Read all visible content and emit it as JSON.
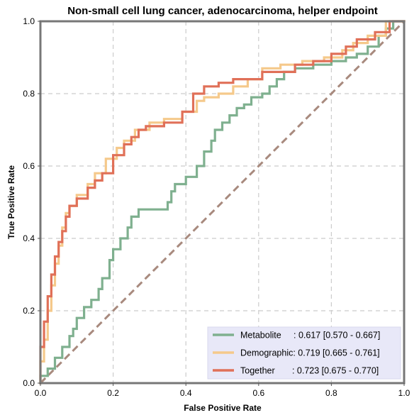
{
  "chart_data": {
    "type": "line",
    "title": "Non-small cell lung cancer, adenocarcinoma, helper endpoint",
    "xlabel": "False Positive Rate",
    "ylabel": "True Positive Rate",
    "xlim": [
      0,
      1
    ],
    "ylim": [
      0,
      1
    ],
    "x_ticks": [
      "0.0",
      "0.2",
      "0.4",
      "0.6",
      "0.8",
      "1.0"
    ],
    "y_ticks": [
      "0.0",
      "0.2",
      "0.4",
      "0.6",
      "0.8",
      "1.0"
    ],
    "grid": true,
    "legend_position": "lower-right",
    "series": [
      {
        "name": "Metabolite",
        "legend_label": "Metabolite     : 0.617 [0.570 - 0.667]",
        "color": "#7fb08f",
        "points": [
          [
            0,
            0
          ],
          [
            0.02,
            0.02
          ],
          [
            0.04,
            0.04
          ],
          [
            0.06,
            0.07
          ],
          [
            0.08,
            0.1
          ],
          [
            0.09,
            0.13
          ],
          [
            0.1,
            0.15
          ],
          [
            0.12,
            0.18
          ],
          [
            0.14,
            0.21
          ],
          [
            0.16,
            0.23
          ],
          [
            0.17,
            0.26
          ],
          [
            0.19,
            0.29
          ],
          [
            0.2,
            0.34
          ],
          [
            0.22,
            0.37
          ],
          [
            0.24,
            0.4
          ],
          [
            0.25,
            0.43
          ],
          [
            0.27,
            0.46
          ],
          [
            0.29,
            0.48
          ],
          [
            0.35,
            0.48
          ],
          [
            0.36,
            0.5
          ],
          [
            0.37,
            0.53
          ],
          [
            0.4,
            0.55
          ],
          [
            0.43,
            0.57
          ],
          [
            0.45,
            0.6
          ],
          [
            0.47,
            0.64
          ],
          [
            0.48,
            0.67
          ],
          [
            0.5,
            0.7
          ],
          [
            0.52,
            0.72
          ],
          [
            0.54,
            0.74
          ],
          [
            0.56,
            0.76
          ],
          [
            0.58,
            0.77
          ],
          [
            0.61,
            0.79
          ],
          [
            0.63,
            0.8
          ],
          [
            0.65,
            0.82
          ],
          [
            0.67,
            0.84
          ],
          [
            0.7,
            0.86
          ],
          [
            0.75,
            0.87
          ],
          [
            0.8,
            0.88
          ],
          [
            0.84,
            0.89
          ],
          [
            0.87,
            0.9
          ],
          [
            0.9,
            0.91
          ],
          [
            0.93,
            0.93
          ],
          [
            0.95,
            0.96
          ],
          [
            0.97,
            0.98
          ],
          [
            1,
            1
          ]
        ]
      },
      {
        "name": "Demographic",
        "legend_label": "Demographic: 0.719 [0.665 - 0.761]",
        "color": "#f5c98b",
        "points": [
          [
            0,
            0
          ],
          [
            0.01,
            0.06
          ],
          [
            0.02,
            0.12
          ],
          [
            0.03,
            0.2
          ],
          [
            0.04,
            0.27
          ],
          [
            0.05,
            0.33
          ],
          [
            0.06,
            0.38
          ],
          [
            0.07,
            0.43
          ],
          [
            0.08,
            0.47
          ],
          [
            0.1,
            0.49
          ],
          [
            0.13,
            0.52
          ],
          [
            0.15,
            0.55
          ],
          [
            0.18,
            0.58
          ],
          [
            0.21,
            0.62
          ],
          [
            0.23,
            0.65
          ],
          [
            0.26,
            0.67
          ],
          [
            0.3,
            0.7
          ],
          [
            0.34,
            0.72
          ],
          [
            0.39,
            0.73
          ],
          [
            0.43,
            0.75
          ],
          [
            0.45,
            0.78
          ],
          [
            0.49,
            0.79
          ],
          [
            0.53,
            0.8
          ],
          [
            0.57,
            0.82
          ],
          [
            0.61,
            0.84
          ],
          [
            0.66,
            0.87
          ],
          [
            0.72,
            0.88
          ],
          [
            0.78,
            0.89
          ],
          [
            0.83,
            0.9
          ],
          [
            0.86,
            0.92
          ],
          [
            0.9,
            0.94
          ],
          [
            0.95,
            0.96
          ],
          [
            1,
            1
          ]
        ]
      },
      {
        "name": "Together",
        "legend_label": "Together       : 0.723 [0.675 - 0.770]",
        "color": "#e07058",
        "points": [
          [
            0,
            0
          ],
          [
            0.01,
            0.1
          ],
          [
            0.02,
            0.17
          ],
          [
            0.03,
            0.24
          ],
          [
            0.04,
            0.3
          ],
          [
            0.05,
            0.35
          ],
          [
            0.06,
            0.39
          ],
          [
            0.07,
            0.42
          ],
          [
            0.08,
            0.46
          ],
          [
            0.1,
            0.49
          ],
          [
            0.13,
            0.51
          ],
          [
            0.15,
            0.54
          ],
          [
            0.17,
            0.56
          ],
          [
            0.2,
            0.58
          ],
          [
            0.23,
            0.63
          ],
          [
            0.25,
            0.66
          ],
          [
            0.27,
            0.68
          ],
          [
            0.29,
            0.7
          ],
          [
            0.34,
            0.71
          ],
          [
            0.39,
            0.72
          ],
          [
            0.42,
            0.75
          ],
          [
            0.45,
            0.8
          ],
          [
            0.49,
            0.82
          ],
          [
            0.53,
            0.83
          ],
          [
            0.57,
            0.84
          ],
          [
            0.61,
            0.84
          ],
          [
            0.66,
            0.86
          ],
          [
            0.7,
            0.86
          ],
          [
            0.75,
            0.88
          ],
          [
            0.8,
            0.89
          ],
          [
            0.84,
            0.91
          ],
          [
            0.87,
            0.93
          ],
          [
            0.92,
            0.95
          ],
          [
            0.96,
            0.97
          ],
          [
            1,
            1
          ]
        ]
      },
      {
        "name": "",
        "role": "chance diagonal",
        "color": "#a88a7e",
        "points": [
          [
            0,
            0
          ],
          [
            1,
            1
          ]
        ]
      }
    ]
  }
}
